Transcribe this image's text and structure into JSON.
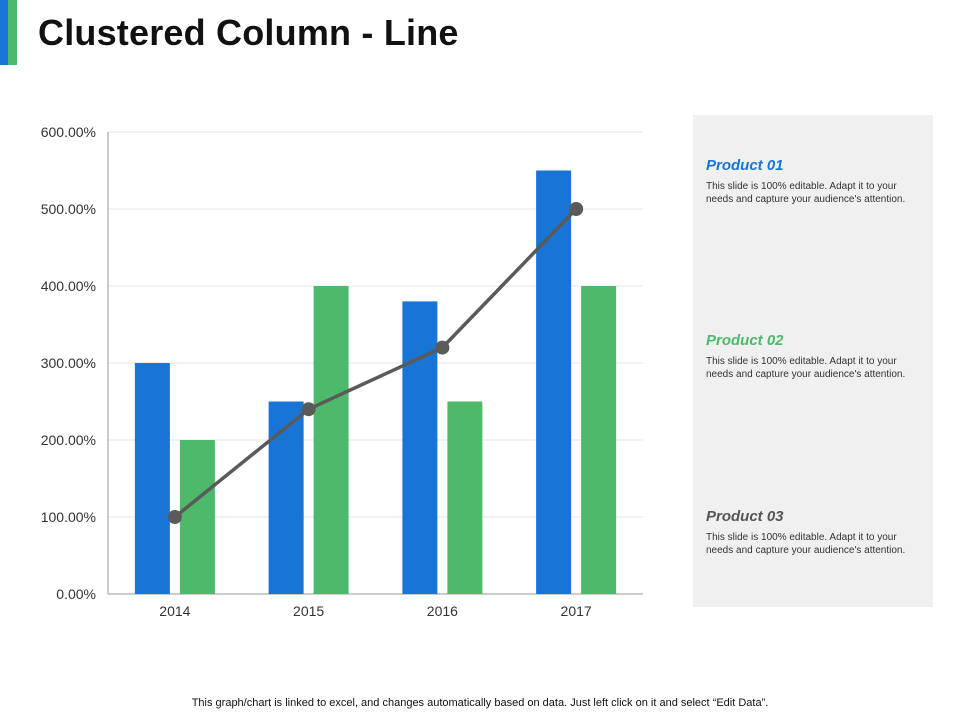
{
  "title": "Clustered Column - Line",
  "colors": {
    "accent_blue": "#1875d6",
    "accent_green": "#4cb96b",
    "line": "#5a5a5a",
    "grid": "#e6e6e6",
    "axis": "#9a9a9a"
  },
  "chart_data": {
    "type": "bar",
    "combo": "clustered column with line",
    "categories": [
      "2014",
      "2015",
      "2016",
      "2017"
    ],
    "series": [
      {
        "kind": "bar",
        "color": "#1875d6",
        "values": [
          3.0,
          2.5,
          3.8,
          5.5
        ]
      },
      {
        "kind": "bar",
        "color": "#4cb96b",
        "values": [
          2.0,
          4.0,
          2.5,
          4.0
        ]
      },
      {
        "kind": "line",
        "color": "#5a5a5a",
        "values": [
          1.0,
          2.4,
          3.2,
          5.0
        ]
      }
    ],
    "ylim": [
      0,
      6
    ],
    "yticks": [
      0,
      1,
      2,
      3,
      4,
      5,
      6
    ],
    "ytick_labels": [
      "0.00%",
      "100.00%",
      "200.00%",
      "300.00%",
      "400.00%",
      "500.00%",
      "600.00%"
    ],
    "grid": true,
    "legend": "none"
  },
  "products": [
    {
      "name": "Product 01",
      "color": "#1875d6",
      "text": "This slide is 100% editable.  Adapt it to your needs and capture your audience's attention."
    },
    {
      "name": "Product 02",
      "color": "#4cb96b",
      "text": "This slide is 100% editable.  Adapt it to your needs and capture your audience's attention."
    },
    {
      "name": "Product 03",
      "color": "#555555",
      "text": "This slide is 100% editable.  Adapt it to your needs and capture your audience's attention."
    }
  ],
  "footnote": "This graph/chart is linked to excel, and changes automatically based on data. Just left click on it and select “Edit Data”."
}
